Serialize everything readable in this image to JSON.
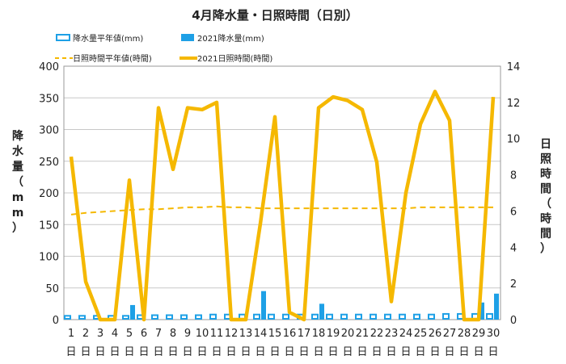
{
  "chart_data": {
    "type": "bar+line",
    "title": "4月降水量・日照時間（日別）",
    "ylabel_left": "降水量（mm）",
    "ylabel_right": "日照時間（時間）",
    "ylim_left": [
      0,
      400
    ],
    "ylim_right": [
      0,
      14
    ],
    "yticks_left": [
      "0",
      "50",
      "100",
      "150",
      "200",
      "250",
      "300",
      "350",
      "400"
    ],
    "yticks_right": [
      "0",
      "2",
      "4",
      "6",
      "8",
      "10",
      "12",
      "14"
    ],
    "grid": true,
    "legend_position": "top",
    "categories": [
      "1",
      "2",
      "3",
      "4",
      "5",
      "6",
      "7",
      "8",
      "9",
      "10",
      "11",
      "12",
      "13",
      "14",
      "15",
      "16",
      "17",
      "18",
      "19",
      "20",
      "21",
      "22",
      "23",
      "24",
      "25",
      "26",
      "27",
      "28",
      "29",
      "30"
    ],
    "day_suffix": "日",
    "series": [
      {
        "name": "降水量平年値(mm)",
        "kind": "bar-outline",
        "axis": "left",
        "color": "#1ea0e6",
        "values": [
          6,
          6,
          6,
          6,
          6,
          7,
          7,
          7,
          7,
          7,
          8,
          8,
          8,
          8,
          8,
          8,
          8,
          8,
          8,
          8,
          8,
          8,
          8,
          8,
          8,
          8,
          9,
          9,
          9,
          9
        ]
      },
      {
        "name": "2021降水量(mm)",
        "kind": "bar",
        "axis": "left",
        "color": "#1ea0e6",
        "values": [
          0,
          0,
          0,
          0,
          23,
          0,
          0,
          0,
          0,
          0,
          0,
          0,
          0,
          45,
          0,
          0,
          0,
          25,
          0,
          0,
          0,
          0,
          0,
          0,
          0,
          0,
          0,
          0,
          27,
          41
        ]
      },
      {
        "name": "日照時間平年値(時間)",
        "kind": "dashed-line",
        "axis": "right",
        "color": "#f5b800",
        "values": [
          5.8,
          5.9,
          5.95,
          6.0,
          6.05,
          6.1,
          6.1,
          6.15,
          6.2,
          6.2,
          6.25,
          6.2,
          6.2,
          6.15,
          6.15,
          6.15,
          6.15,
          6.15,
          6.15,
          6.15,
          6.15,
          6.15,
          6.15,
          6.15,
          6.2,
          6.2,
          6.2,
          6.2,
          6.2,
          6.2
        ]
      },
      {
        "name": "2021日照時間(時間)",
        "kind": "line",
        "axis": "right",
        "color": "#f5b800",
        "values": [
          9.0,
          2.1,
          0.0,
          0.0,
          7.7,
          0.0,
          11.7,
          8.3,
          11.7,
          11.6,
          12.0,
          0.0,
          0.0,
          5.3,
          11.2,
          0.4,
          0.0,
          11.7,
          12.3,
          12.1,
          11.6,
          8.7,
          1.0,
          7.0,
          10.8,
          12.6,
          11.0,
          0.0,
          0.0,
          12.3
        ]
      }
    ]
  }
}
